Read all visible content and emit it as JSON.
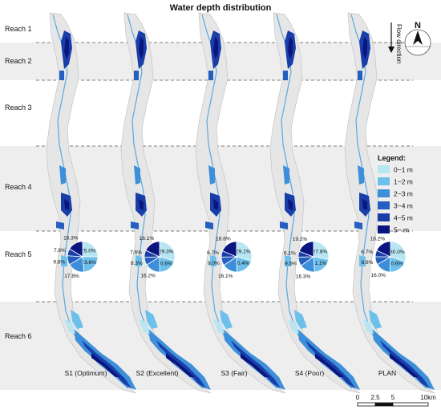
{
  "title": "Water depth distribution",
  "reaches": [
    "Reach 1",
    "Reach 2",
    "Reach 3",
    "Reach 4",
    "Reach 5",
    "Reach 6"
  ],
  "scenarios": [
    {
      "label": "S1 (Optimum)",
      "pie": [
        25.0,
        23.6,
        17.8,
        9.8,
        7.6,
        16.3
      ]
    },
    {
      "label": "S2 (Excellent)",
      "pie": [
        29.3,
        20.6,
        16.2,
        8.3,
        7.6,
        18.1
      ]
    },
    {
      "label": "S3 (Fair)",
      "pie": [
        29.1,
        20.4,
        16.1,
        9.0,
        6.7,
        18.6
      ]
    },
    {
      "label": "S4 (Poor)",
      "pie": [
        27.8,
        21.1,
        16.3,
        9.5,
        6.1,
        19.2
      ]
    },
    {
      "label": "PLAN",
      "pie": [
        30.0,
        20.6,
        16.0,
        8.6,
        6.7,
        18.2
      ]
    }
  ],
  "legend": {
    "title": "Legend:",
    "items": [
      {
        "label": "0~1 m",
        "color": "#b7e6f2"
      },
      {
        "label": "1~2 m",
        "color": "#6cc0ea"
      },
      {
        "label": "2~3 m",
        "color": "#3c8fd8"
      },
      {
        "label": "3~4 m",
        "color": "#2560c0"
      },
      {
        "label": "4~5 m",
        "color": "#1a3ea8"
      },
      {
        "label": "5~ m",
        "color": "#0b1580"
      }
    ]
  },
  "flow_label": "Flow direction",
  "north_label": "N",
  "scale": {
    "ticks": [
      "0",
      "2.5",
      "5",
      "10km"
    ]
  }
}
